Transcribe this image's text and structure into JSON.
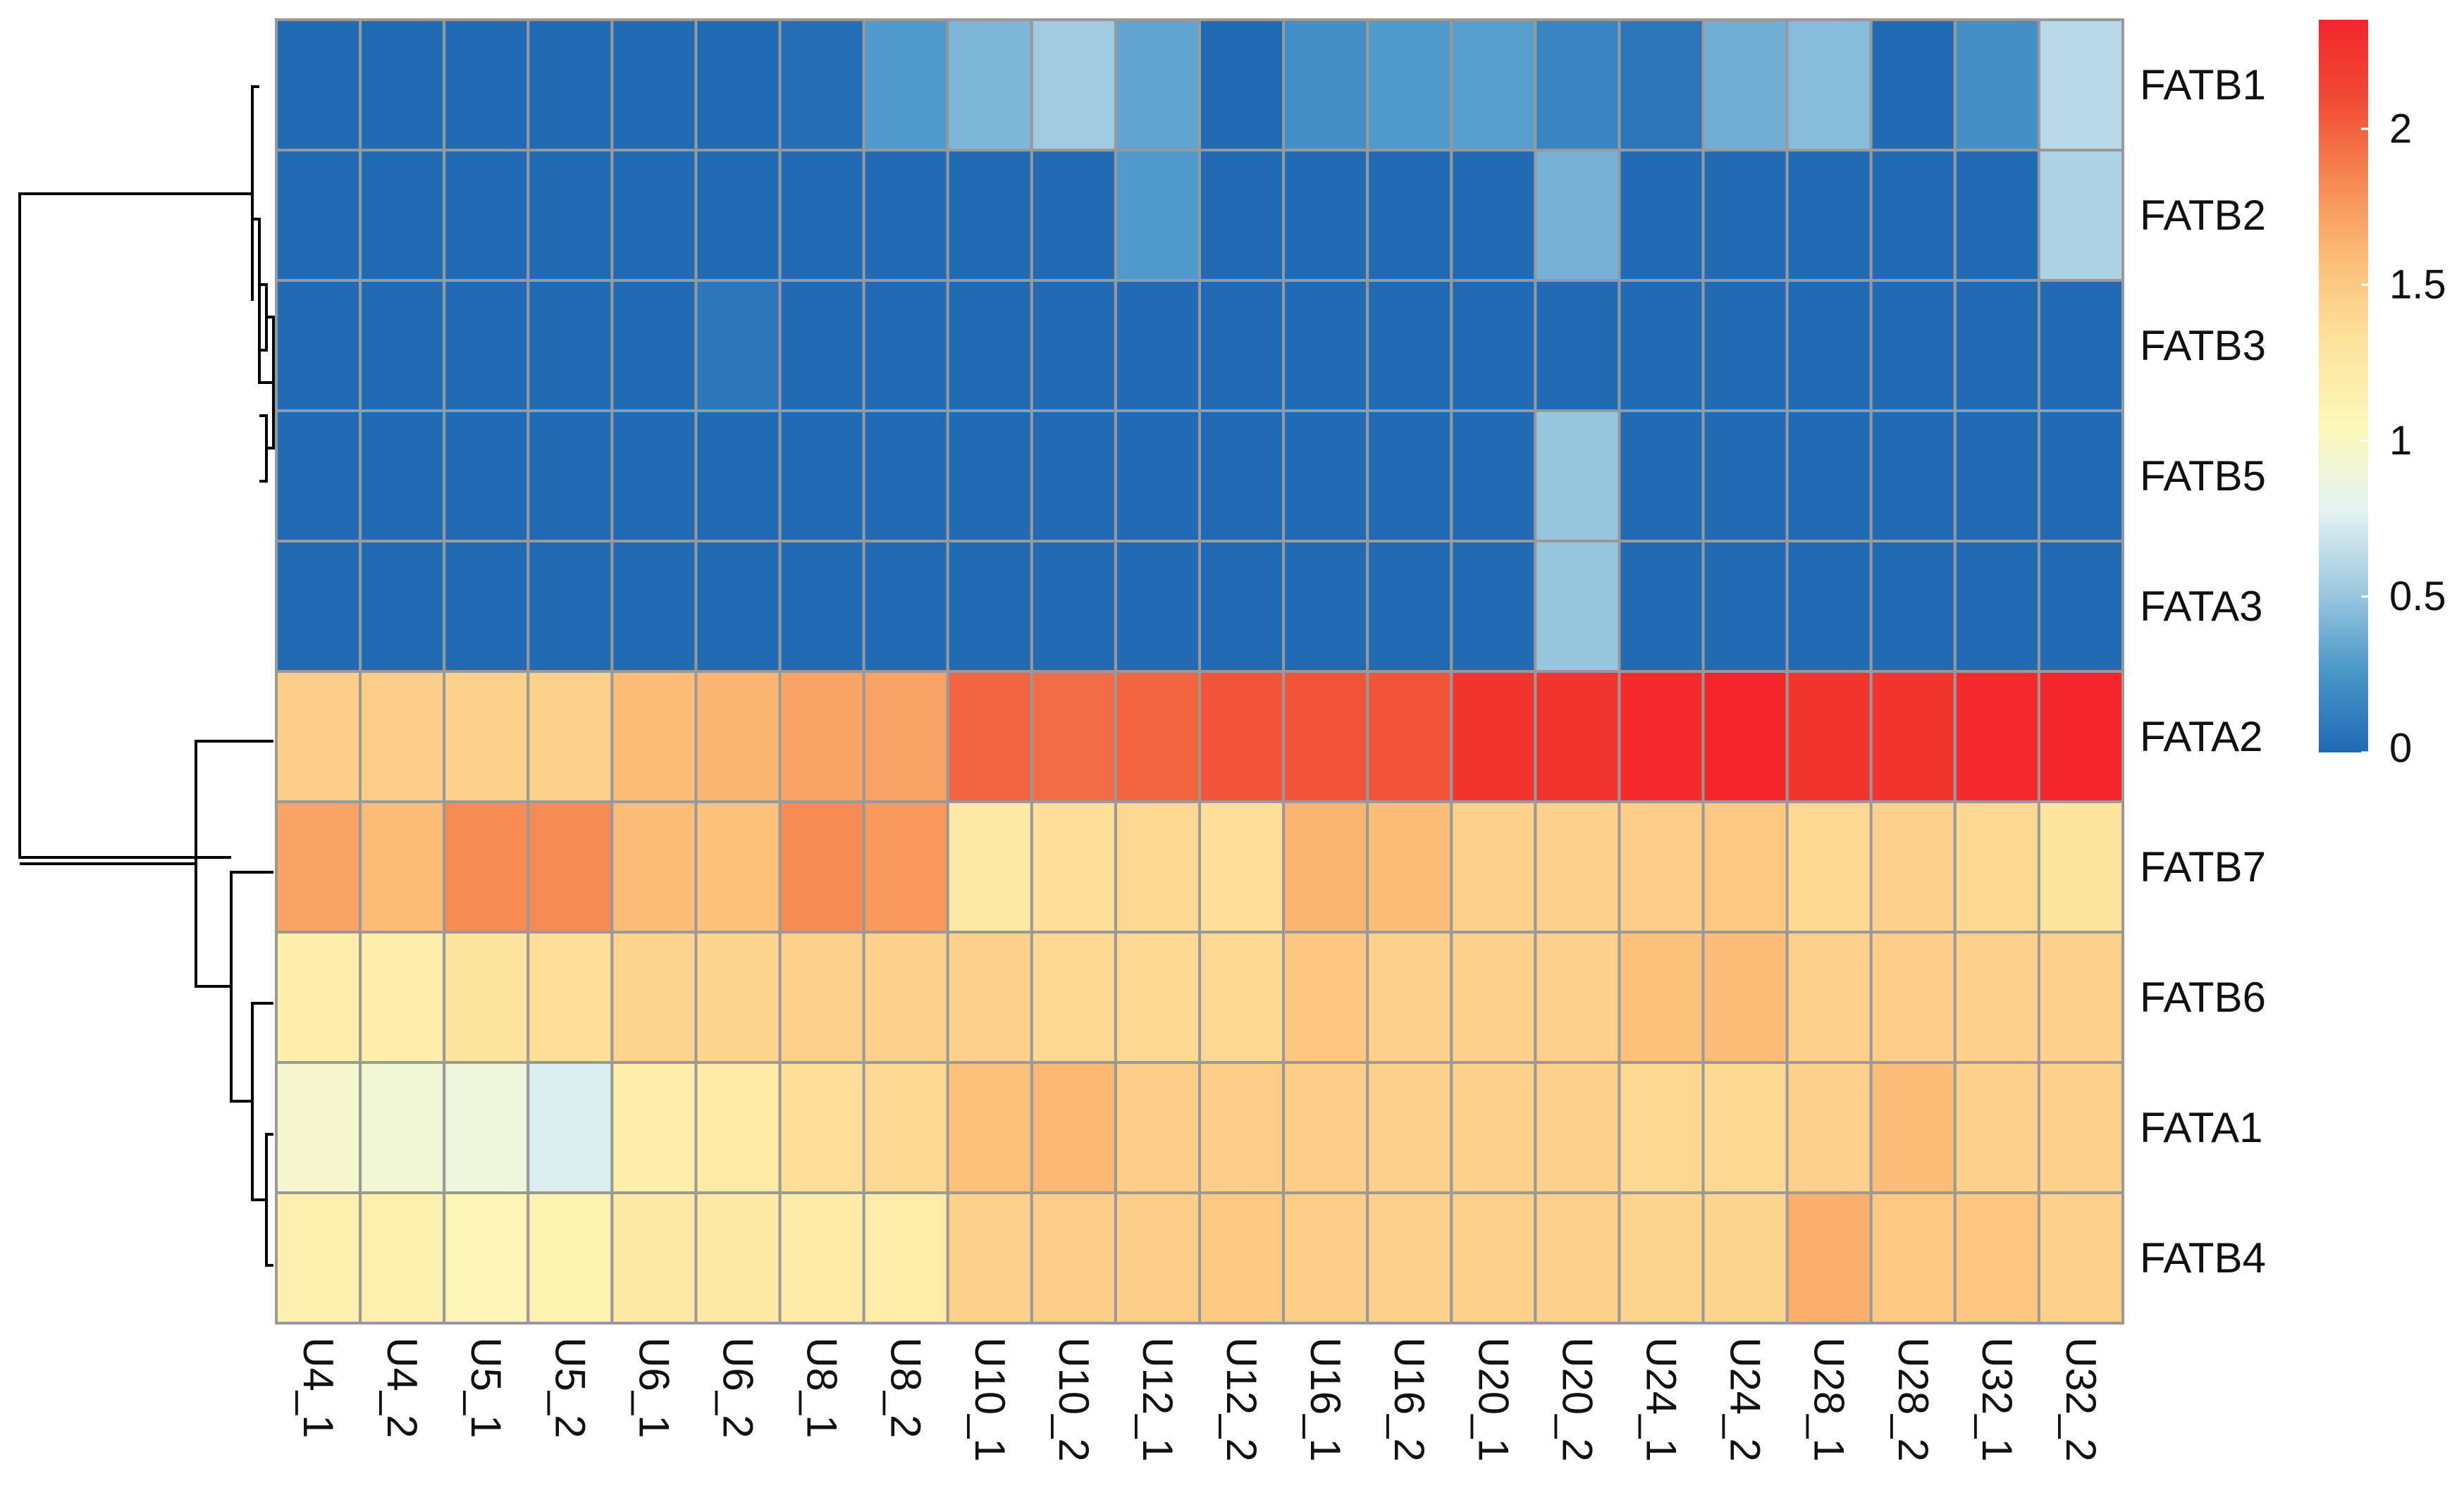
{
  "chart_data": {
    "type": "heatmap",
    "title": "",
    "rows": [
      "FATB1",
      "FATB2",
      "FATB3",
      "FATB5",
      "FATA3",
      "FATA2",
      "FATB7",
      "FATB6",
      "FATA1",
      "FATB4"
    ],
    "columns": [
      "U4_1",
      "U4_2",
      "U5_1",
      "U5_2",
      "U6_1",
      "U6_2",
      "U8_1",
      "U8_2",
      "U10_1",
      "U10_2",
      "U12_1",
      "U12_2",
      "U16_1",
      "U16_2",
      "U20_1",
      "U20_2",
      "U24_1",
      "U24_2",
      "U28_1",
      "U28_2",
      "U32_1",
      "U32_2"
    ],
    "values": [
      [
        0.01,
        0.01,
        0.01,
        0.01,
        0.01,
        0.01,
        0.03,
        0.28,
        0.42,
        0.53,
        0.33,
        0.01,
        0.22,
        0.28,
        0.3,
        0.16,
        0.07,
        0.38,
        0.45,
        0.01,
        0.22,
        0.62
      ],
      [
        0.01,
        0.01,
        0.01,
        0.01,
        0.01,
        0.01,
        0.01,
        0.01,
        0.01,
        0.01,
        0.28,
        0.01,
        0.01,
        0.01,
        0.01,
        0.4,
        0.01,
        0.01,
        0.01,
        0.01,
        0.01,
        0.58
      ],
      [
        0.01,
        0.01,
        0.01,
        0.01,
        0.01,
        0.08,
        0.01,
        0.01,
        0.01,
        0.01,
        0.01,
        0.01,
        0.01,
        0.01,
        0.01,
        0.01,
        0.01,
        0.01,
        0.01,
        0.01,
        0.01,
        0.01
      ],
      [
        0.01,
        0.01,
        0.01,
        0.01,
        0.01,
        0.01,
        0.01,
        0.01,
        0.01,
        0.01,
        0.01,
        0.01,
        0.01,
        0.01,
        0.01,
        0.5,
        0.01,
        0.01,
        0.01,
        0.01,
        0.01,
        0.01
      ],
      [
        0.01,
        0.01,
        0.01,
        0.01,
        0.01,
        0.01,
        0.01,
        0.01,
        0.01,
        0.01,
        0.01,
        0.01,
        0.01,
        0.01,
        0.01,
        0.5,
        0.01,
        0.01,
        0.01,
        0.01,
        0.01,
        0.01
      ],
      [
        1.47,
        1.47,
        1.45,
        1.45,
        1.58,
        1.62,
        1.7,
        1.7,
        1.98,
        1.95,
        1.98,
        2.05,
        2.05,
        2.05,
        2.25,
        2.25,
        2.33,
        2.35,
        2.25,
        2.25,
        2.33,
        2.35
      ],
      [
        1.7,
        1.58,
        1.82,
        1.82,
        1.58,
        1.55,
        1.82,
        1.75,
        1.25,
        1.35,
        1.4,
        1.35,
        1.62,
        1.58,
        1.45,
        1.45,
        1.47,
        1.5,
        1.4,
        1.45,
        1.4,
        1.3
      ],
      [
        1.18,
        1.18,
        1.3,
        1.35,
        1.42,
        1.42,
        1.45,
        1.45,
        1.45,
        1.4,
        1.38,
        1.38,
        1.52,
        1.45,
        1.45,
        1.45,
        1.55,
        1.58,
        1.45,
        1.47,
        1.45,
        1.45
      ],
      [
        0.95,
        0.92,
        0.88,
        0.75,
        1.18,
        1.22,
        1.35,
        1.38,
        1.55,
        1.6,
        1.47,
        1.47,
        1.47,
        1.45,
        1.45,
        1.45,
        1.4,
        1.38,
        1.45,
        1.58,
        1.45,
        1.45
      ],
      [
        1.15,
        1.15,
        1.08,
        1.12,
        1.25,
        1.25,
        1.22,
        1.2,
        1.45,
        1.47,
        1.47,
        1.5,
        1.47,
        1.45,
        1.45,
        1.45,
        1.42,
        1.42,
        1.65,
        1.5,
        1.52,
        1.45
      ]
    ],
    "legend": {
      "position": "right",
      "range": [
        0,
        2.35
      ],
      "ticks": [
        0,
        0.5,
        1,
        1.5,
        2
      ],
      "tick_labels": [
        "0",
        "0.5",
        "1",
        "1.5",
        "2"
      ],
      "colors": [
        "#1f69b3",
        "#4a97c9",
        "#9fcae0",
        "#e5f3f2",
        "#fcf8b8",
        "#fde59f",
        "#fcc07a",
        "#f68a52",
        "#f04b35",
        "#f3262b"
      ]
    },
    "dendrogram": "row clustering on left",
    "xlabel": "",
    "ylabel": ""
  }
}
